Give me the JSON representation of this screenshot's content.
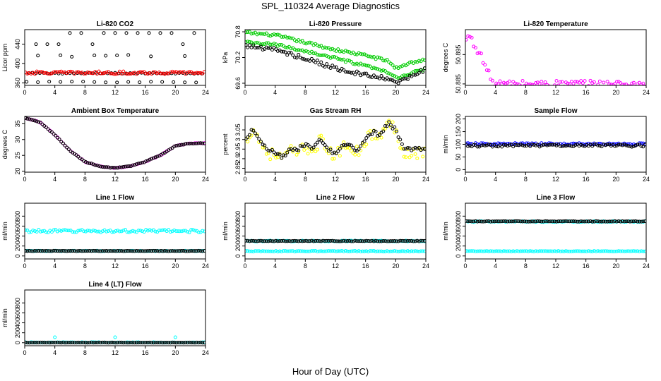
{
  "title": "SPL_110324  Average Diagnostics",
  "xlabel": "Hour of Day (UTC)",
  "chart_data": [
    {
      "type": "scatter",
      "title": "Li-820 CO2",
      "ylabel": "Licor ppm",
      "xlim": [
        0,
        24
      ],
      "ylim": [
        355,
        470
      ],
      "xticks": [
        0,
        4,
        8,
        12,
        16,
        20,
        24
      ],
      "yticks": [
        360,
        400,
        440
      ],
      "series": [
        {
          "name": "black",
          "color": "#000000",
          "style": "co2black"
        },
        {
          "name": "red",
          "color": "#ff0000",
          "style": "flat",
          "base": 381,
          "amp": 3
        }
      ]
    },
    {
      "type": "scatter",
      "title": "Li-820 Pressure",
      "ylabel": "kPa",
      "xlim": [
        0,
        24
      ],
      "ylim": [
        69.55,
        70.85
      ],
      "xticks": [
        0,
        4,
        8,
        12,
        16,
        20,
        24
      ],
      "yticks": [
        69.6,
        70.2,
        70.8
      ],
      "series": [
        {
          "name": "green-upper",
          "color": "#00cc00",
          "style": "line",
          "x": [
            0,
            4,
            8,
            12,
            16,
            19,
            20,
            22,
            24
          ],
          "y": [
            70.78,
            70.72,
            70.55,
            70.38,
            70.25,
            70.12,
            69.95,
            70.08,
            70.15
          ],
          "amp": 0.03
        },
        {
          "name": "green-lower",
          "color": "#00cc00",
          "style": "line",
          "x": [
            0,
            4,
            8,
            12,
            16,
            19,
            20,
            22,
            24
          ],
          "y": [
            70.55,
            70.5,
            70.35,
            70.18,
            70.0,
            69.85,
            69.72,
            69.82,
            69.95
          ],
          "amp": 0.03
        },
        {
          "name": "black",
          "color": "#000000",
          "style": "line",
          "x": [
            0,
            4,
            8,
            12,
            16,
            19,
            20,
            22,
            24
          ],
          "y": [
            70.48,
            70.38,
            70.18,
            69.95,
            69.78,
            69.7,
            69.6,
            69.75,
            69.92
          ],
          "amp": 0.05
        }
      ]
    },
    {
      "type": "scatter",
      "title": "Li-820 Temperature",
      "ylabel": "degrees C",
      "xlim": [
        0,
        24
      ],
      "ylim": [
        50.8845,
        50.9035
      ],
      "xticks": [
        0,
        4,
        8,
        12,
        16,
        20,
        24
      ],
      "yticks": [
        50.885,
        50.895
      ],
      "series": [
        {
          "name": "magenta",
          "color": "#ff00ff",
          "style": "line",
          "x": [
            0,
            0.5,
            1,
            1.5,
            2,
            2.5,
            3,
            3.5,
            4,
            24
          ],
          "y": [
            50.899,
            50.902,
            50.899,
            50.897,
            50.895,
            50.892,
            50.889,
            50.886,
            50.885,
            50.885
          ],
          "amp": 0.0012
        }
      ]
    },
    {
      "type": "scatter",
      "title": "Ambient Box Temperature",
      "ylabel": "degrees C",
      "xlim": [
        0,
        24
      ],
      "ylim": [
        19.7,
        37.3
      ],
      "xticks": [
        0,
        4,
        8,
        12,
        16,
        20,
        24
      ],
      "yticks": [
        20,
        25,
        30,
        35
      ],
      "series": [
        {
          "name": "magenta",
          "color": "#ff00ff",
          "style": "line",
          "x": [
            0,
            2,
            4,
            6,
            8,
            10,
            12,
            14,
            16,
            18,
            20,
            22,
            24
          ],
          "y": [
            36.8,
            35.5,
            31.5,
            26.5,
            23.0,
            21.5,
            21.0,
            21.6,
            23.0,
            25.0,
            28.0,
            28.8,
            28.8
          ],
          "amp": 0.1
        },
        {
          "name": "black",
          "color": "#000000",
          "style": "line",
          "x": [
            0,
            2,
            4,
            6,
            8,
            10,
            12,
            14,
            16,
            18,
            20,
            22,
            24
          ],
          "y": [
            36.8,
            35.5,
            31.5,
            26.5,
            23.0,
            21.5,
            21.0,
            21.6,
            23.0,
            25.0,
            28.0,
            28.8,
            28.8
          ],
          "amp": 0.1
        }
      ]
    },
    {
      "type": "scatter",
      "title": "Gas Stream RH",
      "ylabel": "percent",
      "xlim": [
        0,
        24
      ],
      "ylim": [
        2.83,
        3.12
      ],
      "xticks": [
        0,
        4,
        8,
        12,
        16,
        20,
        24
      ],
      "yticks": [
        2.85,
        2.9,
        2.95,
        3.0,
        3.05
      ],
      "series": [
        {
          "name": "yellow",
          "color": "#ffff00",
          "style": "line",
          "x": [
            0,
            1,
            2,
            3,
            4,
            5,
            6,
            7,
            8,
            9,
            10,
            11,
            12,
            13,
            14,
            15,
            16,
            17,
            18,
            19,
            20,
            21,
            22,
            23,
            24
          ],
          "y": [
            2.98,
            3.06,
            2.99,
            2.93,
            2.92,
            2.9,
            2.94,
            2.93,
            2.96,
            2.94,
            3.0,
            2.94,
            2.91,
            2.96,
            2.97,
            2.93,
            3.0,
            3.03,
            3.01,
            3.09,
            3.05,
            2.94,
            2.93,
            2.93,
            2.94
          ],
          "amp": 0.03
        },
        {
          "name": "black",
          "color": "#000000",
          "style": "line",
          "x": [
            0,
            1,
            2,
            3,
            4,
            5,
            6,
            7,
            8,
            9,
            10,
            11,
            12,
            13,
            14,
            15,
            16,
            17,
            18,
            19,
            20,
            21,
            22,
            23,
            24
          ],
          "y": [
            2.99,
            3.06,
            3.0,
            2.95,
            2.93,
            2.91,
            2.95,
            2.95,
            2.97,
            2.95,
            3.0,
            2.95,
            2.92,
            2.97,
            2.97,
            2.94,
            3.01,
            3.04,
            3.02,
            3.09,
            3.05,
            2.96,
            2.95,
            2.95,
            2.96
          ],
          "amp": 0.01
        }
      ]
    },
    {
      "type": "scatter",
      "title": "Sample Flow",
      "ylabel": "ml/min",
      "xlim": [
        0,
        24
      ],
      "ylim": [
        -10,
        210
      ],
      "xticks": [
        0,
        4,
        8,
        12,
        16,
        20,
        24
      ],
      "yticks": [
        0,
        50,
        100,
        150,
        200
      ],
      "series": [
        {
          "name": "blue",
          "color": "#0000ff",
          "style": "flat",
          "base": 101,
          "amp": 4
        },
        {
          "name": "black",
          "color": "#000000",
          "style": "flat",
          "base": 95,
          "amp": 5
        }
      ]
    },
    {
      "type": "scatter",
      "title": "Line 1 Flow",
      "ylabel": "ml/min",
      "xlim": [
        0,
        24
      ],
      "ylim": [
        -60,
        1060
      ],
      "xticks": [
        0,
        4,
        8,
        12,
        16,
        20,
        24
      ],
      "yticks": [
        0,
        200,
        400,
        600,
        800
      ],
      "series": [
        {
          "name": "cyan-high",
          "color": "#00ffff",
          "style": "flat",
          "base": 500,
          "amp": 28
        },
        {
          "name": "cyan-low",
          "color": "#00ffff",
          "style": "flat",
          "base": 100,
          "amp": 6
        },
        {
          "name": "black",
          "color": "#000000",
          "style": "flat",
          "base": 100,
          "amp": 4
        }
      ]
    },
    {
      "type": "scatter",
      "title": "Line 2 Flow",
      "ylabel": "ml/min",
      "xlim": [
        0,
        24
      ],
      "ylim": [
        -60,
        1060
      ],
      "xticks": [
        0,
        4,
        8,
        12,
        16,
        20,
        24
      ],
      "yticks": [
        0,
        200,
        400,
        600,
        800
      ],
      "series": [
        {
          "name": "cyan-high",
          "color": "#00ffff",
          "style": "flat",
          "base": 300,
          "amp": 10
        },
        {
          "name": "cyan-low",
          "color": "#00ffff",
          "style": "flat",
          "base": 95,
          "amp": 8
        },
        {
          "name": "black",
          "color": "#000000",
          "style": "flat",
          "base": 300,
          "amp": 6
        }
      ]
    },
    {
      "type": "scatter",
      "title": "Line 3 Flow",
      "ylabel": "ml/min",
      "xlim": [
        0,
        24
      ],
      "ylim": [
        -60,
        1060
      ],
      "xticks": [
        0,
        4,
        8,
        12,
        16,
        20,
        24
      ],
      "yticks": [
        0,
        200,
        400,
        600,
        800
      ],
      "series": [
        {
          "name": "cyan-high",
          "color": "#00ffff",
          "style": "flat",
          "base": 690,
          "amp": 10
        },
        {
          "name": "cyan-low",
          "color": "#00ffff",
          "style": "flat",
          "base": 95,
          "amp": 6
        },
        {
          "name": "black",
          "color": "#000000",
          "style": "flat",
          "base": 695,
          "amp": 6
        }
      ]
    },
    {
      "type": "scatter",
      "title": "Line 4 (LT) Flow",
      "ylabel": "ml/min",
      "xlim": [
        0,
        24
      ],
      "ylim": [
        -60,
        1060
      ],
      "xticks": [
        0,
        4,
        8,
        12,
        16,
        20,
        24
      ],
      "yticks": [
        0,
        200,
        400,
        600,
        800
      ],
      "series": [
        {
          "name": "cyan",
          "color": "#00ffff",
          "style": "flat",
          "base": 5,
          "amp": 6,
          "spikes": [
            [
              4,
              110
            ],
            [
              12,
              110
            ],
            [
              20,
              110
            ]
          ]
        },
        {
          "name": "black",
          "color": "#000000",
          "style": "flat",
          "base": 3,
          "amp": 3
        }
      ]
    }
  ]
}
